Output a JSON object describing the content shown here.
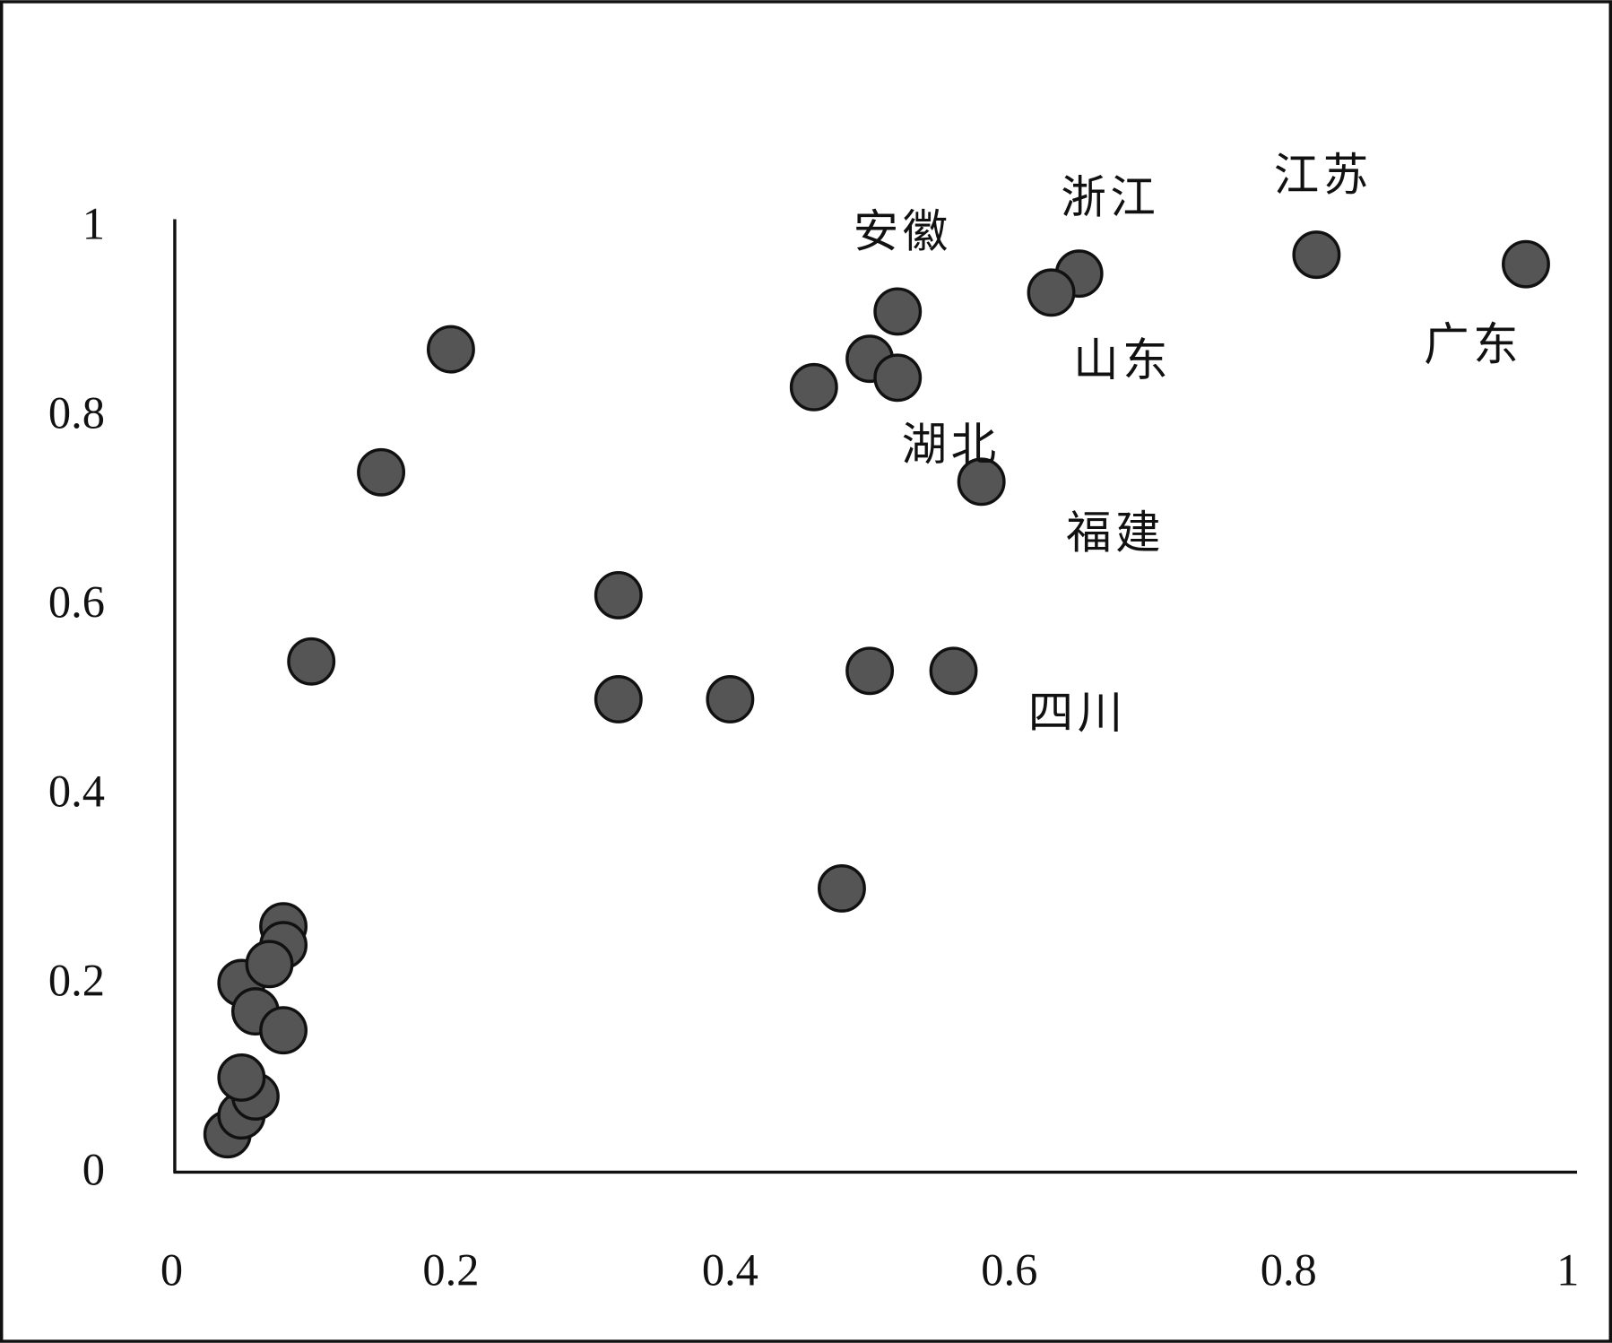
{
  "chart_data": {
    "type": "scatter",
    "x": [
      0.04,
      0.05,
      0.06,
      0.05,
      0.05,
      0.06,
      0.08,
      0.08,
      0.08,
      0.07,
      0.1,
      0.15,
      0.2,
      0.32,
      0.32,
      0.4,
      0.46,
      0.5,
      0.52,
      0.52,
      0.5,
      0.56,
      0.58,
      0.48,
      0.65,
      0.63,
      0.82,
      0.97
    ],
    "values": [
      0.04,
      0.06,
      0.08,
      0.1,
      0.2,
      0.17,
      0.15,
      0.26,
      0.24,
      0.22,
      0.54,
      0.74,
      0.87,
      0.61,
      0.5,
      0.5,
      0.83,
      0.86,
      0.91,
      0.84,
      0.53,
      0.53,
      0.73,
      0.3,
      0.95,
      0.93,
      0.97,
      0.96
    ],
    "color": "#555555",
    "xlim": [
      0,
      1
    ],
    "ylim": [
      0,
      1
    ],
    "xticks": [
      0,
      0.2,
      0.4,
      0.6,
      0.8,
      1
    ],
    "yticks": [
      0,
      0.2,
      0.4,
      0.6,
      0.8,
      1
    ],
    "grid": false,
    "annotations": [
      "安徽",
      "浙江",
      "江苏",
      "山东",
      "广东",
      "湖北",
      "福建",
      "四川"
    ]
  }
}
